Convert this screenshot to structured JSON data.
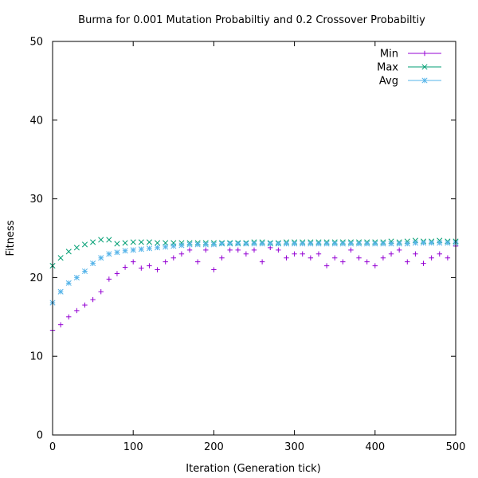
{
  "chart_data": {
    "type": "scatter",
    "title": "Burma for 0.001 Mutation Probabiltiy and 0.2 Crossover Probabiltiy",
    "xlabel": "Iteration (Generation tick)",
    "ylabel": "Fitness",
    "xlim": [
      0,
      500
    ],
    "ylim": [
      0,
      50
    ],
    "xticks": [
      0,
      100,
      200,
      300,
      400,
      500
    ],
    "yticks": [
      0,
      10,
      20,
      30,
      40,
      50
    ],
    "grid": false,
    "legend_position": "top-right",
    "series": [
      {
        "name": "Min",
        "color": "#9400d3",
        "marker": "plus",
        "x": [
          0,
          10,
          20,
          30,
          40,
          50,
          60,
          70,
          80,
          90,
          100,
          110,
          120,
          130,
          140,
          150,
          160,
          170,
          180,
          190,
          200,
          210,
          220,
          230,
          240,
          250,
          260,
          270,
          280,
          290,
          300,
          310,
          320,
          330,
          340,
          350,
          360,
          370,
          380,
          390,
          400,
          410,
          420,
          430,
          440,
          450,
          460,
          470,
          480,
          490,
          500
        ],
        "y": [
          13.3,
          14.0,
          15.0,
          15.8,
          16.5,
          17.2,
          18.2,
          19.8,
          20.5,
          21.3,
          22.0,
          21.2,
          21.5,
          21.0,
          22.0,
          22.5,
          23.0,
          23.5,
          22.0,
          23.5,
          21.0,
          22.5,
          23.5,
          23.5,
          23.0,
          23.5,
          22.0,
          23.8,
          23.5,
          22.5,
          23.0,
          23.0,
          22.5,
          23.0,
          21.5,
          22.5,
          22.0,
          23.5,
          22.5,
          22.0,
          21.5,
          22.5,
          23.0,
          23.5,
          22.0,
          23.0,
          21.8,
          22.5,
          23.0,
          22.5,
          24.0
        ]
      },
      {
        "name": "Max",
        "color": "#009e73",
        "marker": "cross",
        "x": [
          0,
          10,
          20,
          30,
          40,
          50,
          60,
          70,
          80,
          90,
          100,
          110,
          120,
          130,
          140,
          150,
          160,
          170,
          180,
          190,
          200,
          210,
          220,
          230,
          240,
          250,
          260,
          270,
          280,
          290,
          300,
          310,
          320,
          330,
          340,
          350,
          360,
          370,
          380,
          390,
          400,
          410,
          420,
          430,
          440,
          450,
          460,
          470,
          480,
          490,
          500
        ],
        "y": [
          21.5,
          22.5,
          23.3,
          23.8,
          24.2,
          24.5,
          24.8,
          24.8,
          24.3,
          24.4,
          24.5,
          24.5,
          24.5,
          24.4,
          24.4,
          24.4,
          24.4,
          24.4,
          24.4,
          24.4,
          24.4,
          24.4,
          24.4,
          24.4,
          24.4,
          24.5,
          24.5,
          24.4,
          24.4,
          24.5,
          24.5,
          24.5,
          24.5,
          24.5,
          24.5,
          24.5,
          24.5,
          24.5,
          24.5,
          24.5,
          24.5,
          24.5,
          24.6,
          24.5,
          24.6,
          24.7,
          24.6,
          24.6,
          24.7,
          24.6,
          24.6
        ]
      },
      {
        "name": "Avg",
        "color": "#56b4e9",
        "marker": "star",
        "x": [
          0,
          10,
          20,
          30,
          40,
          50,
          60,
          70,
          80,
          90,
          100,
          110,
          120,
          130,
          140,
          150,
          160,
          170,
          180,
          190,
          200,
          210,
          220,
          230,
          240,
          250,
          260,
          270,
          280,
          290,
          300,
          310,
          320,
          330,
          340,
          350,
          360,
          370,
          380,
          390,
          400,
          410,
          420,
          430,
          440,
          450,
          460,
          470,
          480,
          490,
          500
        ],
        "y": [
          16.8,
          18.2,
          19.3,
          20.0,
          20.8,
          21.8,
          22.5,
          23.0,
          23.2,
          23.4,
          23.5,
          23.6,
          23.7,
          23.8,
          23.9,
          24.0,
          24.1,
          24.2,
          24.2,
          24.2,
          24.2,
          24.3,
          24.3,
          24.3,
          24.3,
          24.3,
          24.3,
          24.3,
          24.3,
          24.3,
          24.3,
          24.3,
          24.3,
          24.3,
          24.3,
          24.3,
          24.3,
          24.3,
          24.3,
          24.3,
          24.3,
          24.3,
          24.3,
          24.3,
          24.3,
          24.4,
          24.4,
          24.4,
          24.4,
          24.4,
          24.4
        ]
      }
    ]
  }
}
